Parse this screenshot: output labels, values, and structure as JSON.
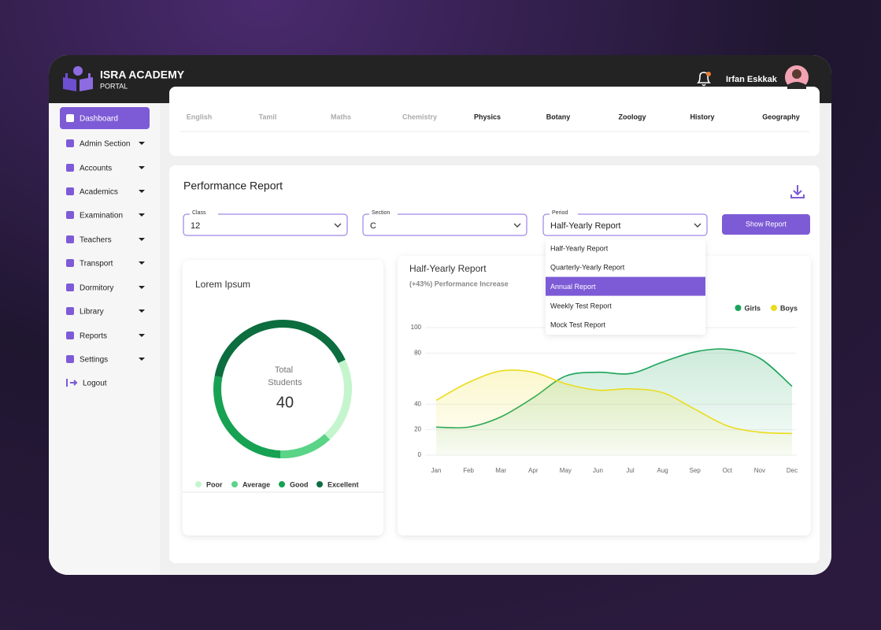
{
  "header": {
    "title": "ISRA ACADEMY",
    "subtitle": "PORTAL",
    "user": "Irfan Eskkak"
  },
  "sidebar": {
    "active": 0,
    "items": [
      "Dashboard",
      "Admin Section",
      "Accounts",
      "Academics",
      "Examination",
      "Teachers",
      "Transport",
      "Dormitory",
      "Library",
      "Reports",
      "Settings",
      "Logout"
    ]
  },
  "subjects": [
    "English",
    "Tamil",
    "Maths",
    "Chemistry",
    "Physics",
    "Botany",
    "Zoology",
    "History",
    "Geography"
  ],
  "report": {
    "title": "Performance Report",
    "filters": [
      {
        "label": "Class",
        "value": "12"
      },
      {
        "label": "Section",
        "value": "C"
      },
      {
        "label": "Period",
        "value": "Half-Yearly Report"
      }
    ],
    "button": "Show Report",
    "dropdown": {
      "selected": 2,
      "options": [
        "Half-Yearly Report",
        "Quarterly-Yearly Report",
        "Annual Report",
        "Weekly Test Report",
        "Mock Test Report"
      ]
    }
  },
  "chart_data": [
    {
      "type": "pie",
      "title": "Lorem Ipsum",
      "center_label": "Total Students",
      "total": 40,
      "categories": [
        "Poor",
        "Average",
        "Good",
        "Excellent"
      ],
      "values": [
        8,
        5,
        11,
        16
      ],
      "colors": [
        "#c4f5cd",
        "#5ad487",
        "#17a253",
        "#0c6d3f"
      ]
    },
    {
      "type": "line",
      "title": "Half-Yearly Report",
      "subtitle": "(+43%) Performance Increase",
      "categories": [
        "Jan",
        "Feb",
        "Mar",
        "Apr",
        "May",
        "Jun",
        "Jul",
        "Aug",
        "Sep",
        "Oct",
        "Nov",
        "Dec"
      ],
      "series": [
        {
          "name": "Girls",
          "color": "#1ba35a",
          "values": [
            22,
            22,
            30,
            45,
            62,
            65,
            64,
            73,
            81,
            83,
            76,
            54
          ]
        },
        {
          "name": "Boys",
          "color": "#ebdc1c",
          "values": [
            43,
            57,
            66,
            65,
            56,
            51,
            52,
            49,
            36,
            23,
            18,
            17
          ]
        }
      ],
      "ylim": [
        0,
        100
      ],
      "yticks": [
        100,
        80,
        40,
        20,
        0
      ],
      "grid": true,
      "legend": "top-right"
    }
  ]
}
